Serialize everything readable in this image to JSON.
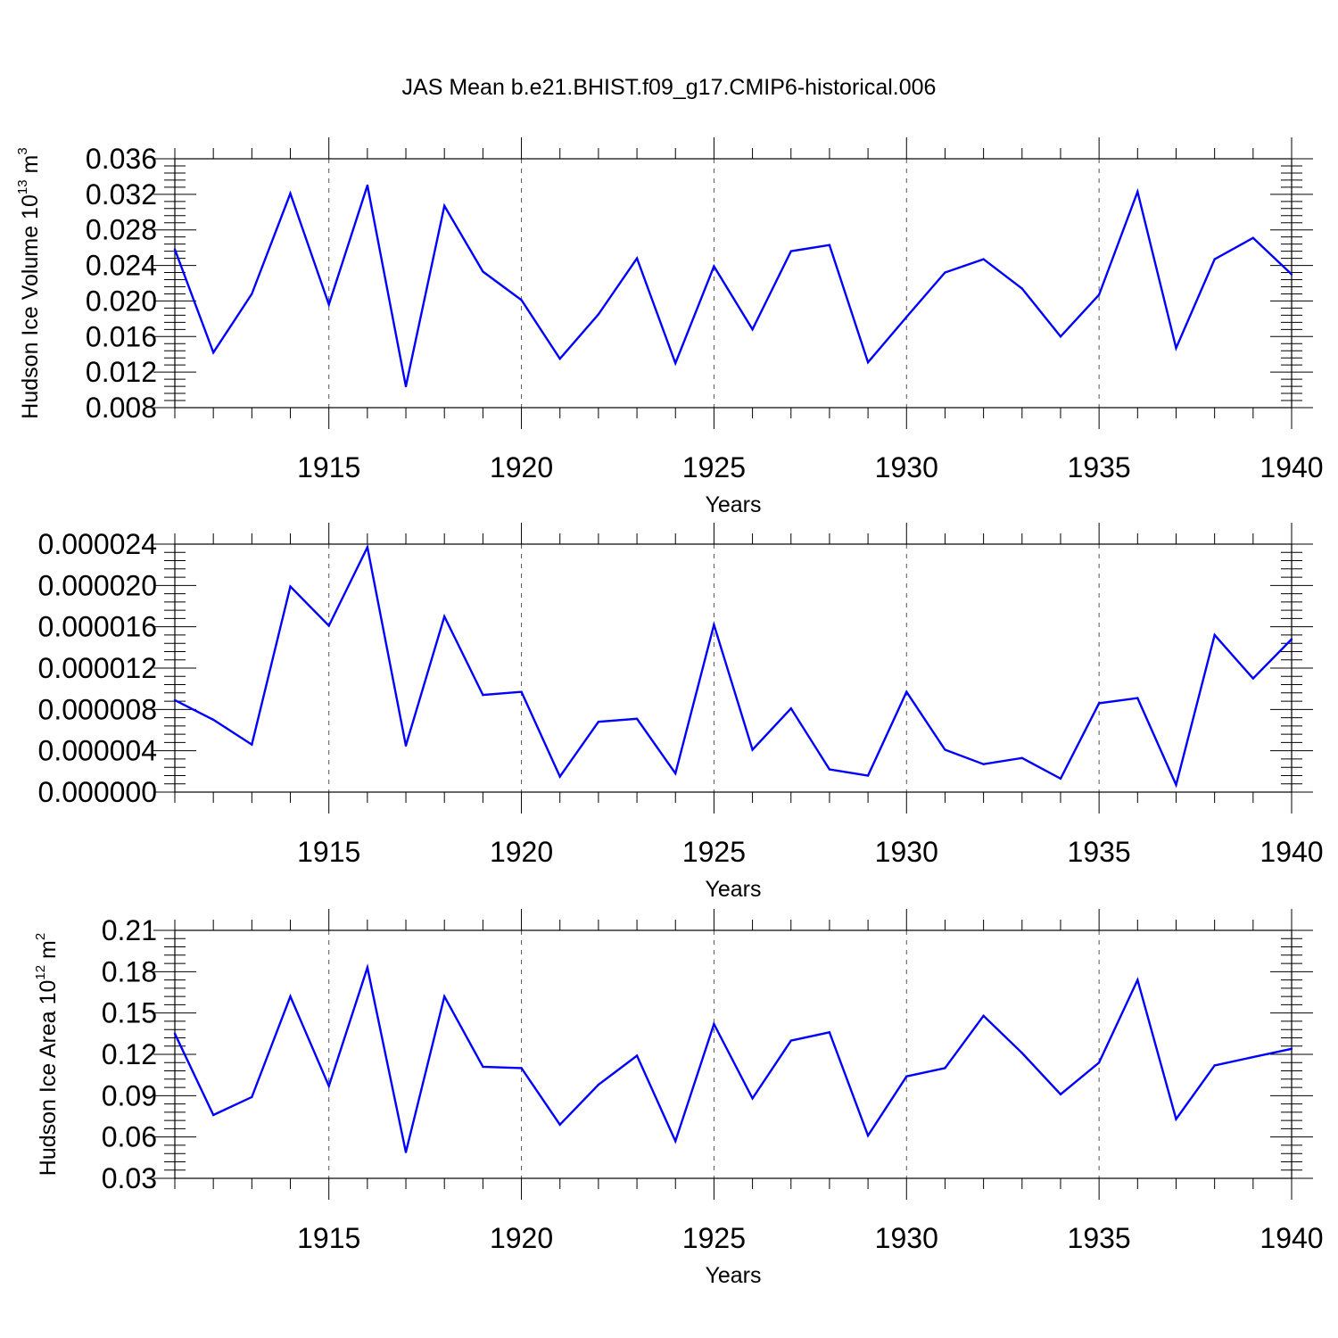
{
  "figure": {
    "title": "JAS Mean b.e21.BHIST.f09_g17.CMIP6-historical.006",
    "colors": {
      "line": "#0000ff",
      "axis": "#000000",
      "grid": "#555555"
    }
  },
  "chart_data": [
    {
      "type": "line",
      "title": "JAS Mean b.e21.BHIST.f09_g17.CMIP6-historical.006",
      "xlabel": "Years",
      "ylabel": {
        "text": "Hudson Ice Volume 10",
        "exp": "13",
        "unit": " m",
        "unit_exp": "3"
      },
      "xlim": [
        1911,
        1940
      ],
      "ylim": [
        0.008,
        0.036
      ],
      "xticks": [
        "1915",
        "1920",
        "1925",
        "1930",
        "1935",
        "1940"
      ],
      "yticks": [
        "0.008",
        "0.012",
        "0.016",
        "0.020",
        "0.024",
        "0.028",
        "0.032",
        "0.036"
      ],
      "grid": "x-dashed",
      "x": [
        1911,
        1912,
        1913,
        1914,
        1915,
        1916,
        1917,
        1918,
        1919,
        1920,
        1921,
        1922,
        1923,
        1924,
        1925,
        1926,
        1927,
        1928,
        1929,
        1930,
        1931,
        1932,
        1933,
        1934,
        1935,
        1936,
        1937,
        1938,
        1939,
        1940
      ],
      "values": [
        0.0258,
        0.0142,
        0.0208,
        0.0321,
        0.0196,
        0.033,
        0.0104,
        0.0307,
        0.0233,
        0.0201,
        0.0135,
        0.0185,
        0.0248,
        0.013,
        0.0239,
        0.0168,
        0.0256,
        0.0263,
        0.0131,
        0.0182,
        0.0232,
        0.0247,
        0.0214,
        0.016,
        0.0207,
        0.0323,
        0.0147,
        0.0247,
        0.0271,
        0.023
      ]
    },
    {
      "type": "line",
      "xlabel": "Years",
      "ylabel": null,
      "xlim": [
        1911,
        1940
      ],
      "ylim": [
        0.0,
        2.4e-05
      ],
      "xticks": [
        "1915",
        "1920",
        "1925",
        "1930",
        "1935",
        "1940"
      ],
      "yticks": [
        "0.000000",
        "0.000004",
        "0.000008",
        "0.000012",
        "0.000016",
        "0.000020",
        "0.000024"
      ],
      "grid": "x-dashed",
      "x": [
        1911,
        1912,
        1913,
        1914,
        1915,
        1916,
        1917,
        1918,
        1919,
        1920,
        1921,
        1922,
        1923,
        1924,
        1925,
        1926,
        1927,
        1928,
        1929,
        1930,
        1931,
        1932,
        1933,
        1934,
        1935,
        1936,
        1937,
        1938,
        1939,
        1940
      ],
      "values": [
        8.9e-06,
        7e-06,
        4.6e-06,
        1.99e-05,
        1.61e-05,
        2.37e-05,
        4.5e-06,
        1.7e-05,
        9.4e-06,
        9.7e-06,
        1.5e-06,
        6.8e-06,
        7.1e-06,
        1.8e-06,
        1.62e-05,
        4.1e-06,
        8.1e-06,
        2.2e-06,
        1.6e-06,
        9.7e-06,
        4.1e-06,
        2.7e-06,
        3.3e-06,
        1.3e-06,
        8.6e-06,
        9.1e-06,
        7e-07,
        1.52e-05,
        1.1e-05,
        1.48e-05
      ]
    },
    {
      "type": "line",
      "xlabel": "Years",
      "ylabel": {
        "text": "Hudson Ice Area 10",
        "exp": "12",
        "unit": " m",
        "unit_exp": "2"
      },
      "xlim": [
        1911,
        1940
      ],
      "ylim": [
        0.03,
        0.21
      ],
      "xticks": [
        "1915",
        "1920",
        "1925",
        "1930",
        "1935",
        "1940"
      ],
      "yticks": [
        "0.03",
        "0.06",
        "0.09",
        "0.12",
        "0.15",
        "0.18",
        "0.21"
      ],
      "grid": "x-dashed",
      "x": [
        1911,
        1912,
        1913,
        1914,
        1915,
        1916,
        1917,
        1918,
        1919,
        1920,
        1921,
        1922,
        1923,
        1924,
        1925,
        1926,
        1927,
        1928,
        1929,
        1930,
        1931,
        1932,
        1933,
        1934,
        1935,
        1936,
        1937,
        1938,
        1939,
        1940
      ],
      "values": [
        0.135,
        0.076,
        0.089,
        0.162,
        0.097,
        0.183,
        0.049,
        0.162,
        0.111,
        0.11,
        0.069,
        0.098,
        0.119,
        0.057,
        0.142,
        0.088,
        0.13,
        0.136,
        0.061,
        0.104,
        0.11,
        0.148,
        0.121,
        0.091,
        0.114,
        0.174,
        0.073,
        0.112,
        0.118,
        0.124
      ]
    }
  ]
}
